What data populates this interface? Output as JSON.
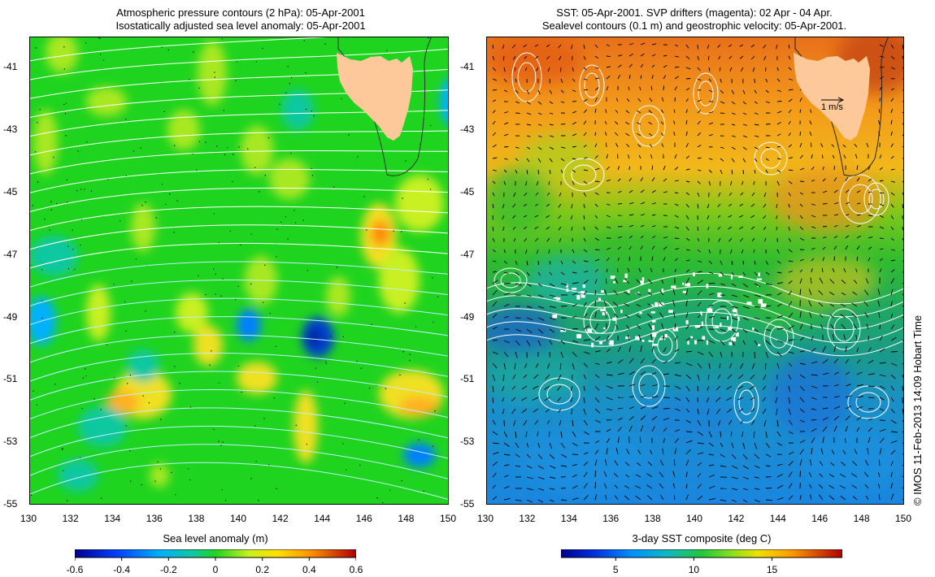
{
  "left_panel": {
    "title_line1": "Atmospheric pressure contours (2 hPa): 05-Apr-2001",
    "title_line2": "Isostatically adjusted sea level anomaly: 05-Apr-2001",
    "colorbar_label": "Sea level anomaly (m)",
    "colorbar_ticks": [
      "-0.6",
      "-0.4",
      "-0.2",
      "0",
      "0.2",
      "0.4",
      "0.6"
    ],
    "colorbar_range": [
      -0.6,
      0.6
    ]
  },
  "right_panel": {
    "title_line1": "SST: 05-Apr-2001. SVP drifters (magenta): 02 Apr - 04 Apr.",
    "title_line2": "Sealevel contours (0.1 m) and geostrophic velocity: 05-Apr-2001.",
    "colorbar_label": "3-day SST composite (deg C)",
    "colorbar_ticks": [
      "5",
      "10",
      "15"
    ],
    "colorbar_range": [
      1.5,
      19.5
    ],
    "velocity_scale_label": "1 m/s"
  },
  "axes": {
    "x_ticks": [
      "130",
      "132",
      "134",
      "136",
      "138",
      "140",
      "142",
      "144",
      "146",
      "148",
      "150"
    ],
    "y_ticks": [
      "-41",
      "-43",
      "-45",
      "-47",
      "-49",
      "-51",
      "-53",
      "-55"
    ],
    "lon_range": [
      130,
      150
    ],
    "lat_range": [
      -40,
      -55
    ]
  },
  "copyright": "© IMOS 11-Feb-2013 14:09 Hobart Time",
  "colors": {
    "land": "#fdc89a",
    "left_background": "#1fd41f",
    "contour_white": "#ffffff"
  }
}
